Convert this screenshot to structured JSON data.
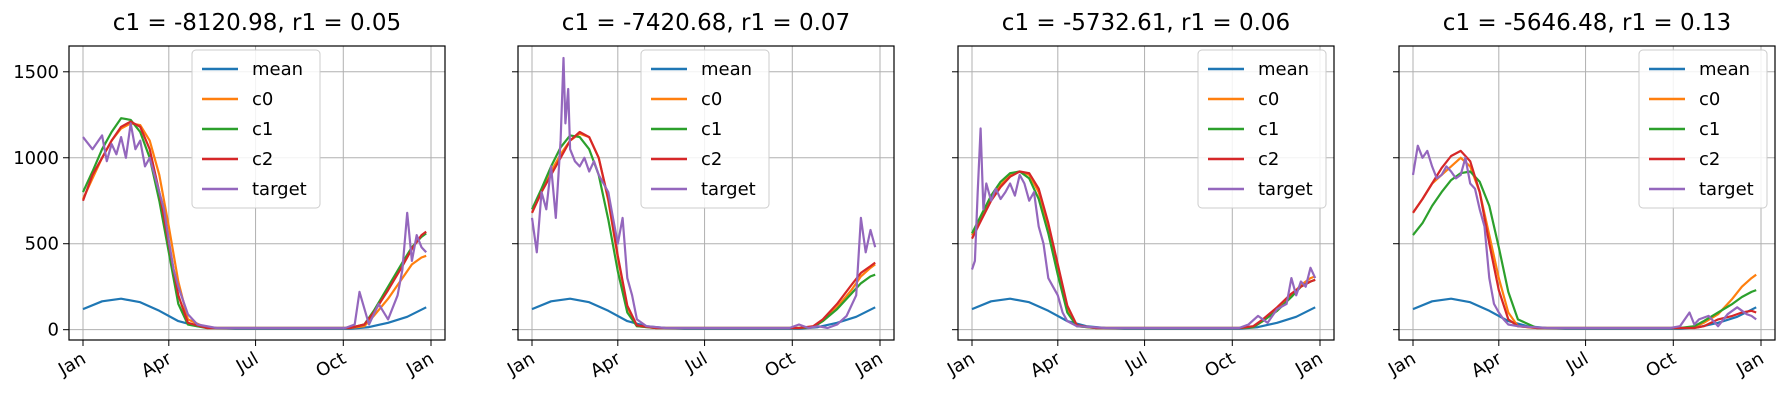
{
  "series_colors": {
    "mean": "#1f77b4",
    "c0": "#ff7f0e",
    "c1": "#2ca02c",
    "c2": "#d62728",
    "target": "#9467bd"
  },
  "chart_data": [
    {
      "type": "line",
      "title": "c1 = -8120.98, r1 = 0.05",
      "x_ticks": [
        "Jan",
        "Apr",
        "Jul",
        "Oct",
        "Jan"
      ],
      "y_ticks": [
        0,
        500,
        1000,
        1500
      ],
      "ylim": [
        -60,
        1650
      ],
      "legend": [
        "mean",
        "c0",
        "c1",
        "c2",
        "target"
      ],
      "legend_position": "upper-center",
      "grid": true,
      "series": [
        {
          "name": "mean",
          "x": [
            0,
            20,
            40,
            60,
            80,
            100,
            120,
            140,
            160,
            200,
            280,
            300,
            320,
            340,
            360
          ],
          "y": [
            120,
            165,
            180,
            160,
            110,
            50,
            20,
            10,
            5,
            5,
            5,
            15,
            40,
            75,
            130
          ]
        },
        {
          "name": "c0",
          "x": [
            0,
            10,
            20,
            30,
            40,
            50,
            60,
            70,
            80,
            90,
            100,
            110,
            130,
            280,
            295,
            305,
            320,
            335,
            345,
            355,
            360
          ],
          "y": [
            760,
            880,
            1000,
            1100,
            1170,
            1200,
            1190,
            1100,
            900,
            600,
            280,
            60,
            10,
            10,
            20,
            80,
            180,
            300,
            380,
            420,
            430
          ]
        },
        {
          "name": "c1",
          "x": [
            0,
            10,
            20,
            30,
            40,
            50,
            60,
            70,
            80,
            90,
            100,
            110,
            130,
            280,
            295,
            305,
            320,
            335,
            345,
            355,
            360
          ],
          "y": [
            800,
            920,
            1050,
            1150,
            1230,
            1220,
            1150,
            1000,
            750,
            450,
            150,
            30,
            10,
            10,
            30,
            110,
            250,
            390,
            480,
            540,
            560
          ]
        },
        {
          "name": "c2",
          "x": [
            0,
            10,
            20,
            30,
            40,
            50,
            60,
            70,
            80,
            90,
            100,
            110,
            130,
            280,
            295,
            305,
            320,
            335,
            345,
            355,
            360
          ],
          "y": [
            750,
            900,
            1000,
            1100,
            1180,
            1210,
            1180,
            1050,
            800,
            500,
            200,
            40,
            10,
            10,
            30,
            100,
            230,
            370,
            470,
            550,
            570
          ]
        },
        {
          "name": "target",
          "x": [
            0,
            10,
            20,
            25,
            30,
            35,
            40,
            45,
            50,
            55,
            60,
            65,
            70,
            75,
            80,
            85,
            90,
            95,
            100,
            110,
            120,
            140,
            200,
            275,
            285,
            290,
            300,
            310,
            320,
            330,
            335,
            340,
            345,
            350,
            355,
            360
          ],
          "y": [
            1120,
            1050,
            1130,
            980,
            1080,
            1020,
            1120,
            1000,
            1200,
            1050,
            1100,
            950,
            1000,
            900,
            800,
            700,
            520,
            350,
            250,
            90,
            30,
            10,
            10,
            10,
            30,
            220,
            30,
            150,
            60,
            200,
            350,
            680,
            400,
            550,
            480,
            450
          ]
        }
      ]
    },
    {
      "type": "line",
      "title": "c1 = -7420.68, r1 = 0.07",
      "x_ticks": [
        "Jan",
        "Apr",
        "Jul",
        "Oct",
        "Jan"
      ],
      "y_ticks": [
        0,
        500,
        1000,
        1500
      ],
      "ylim": [
        -60,
        1650
      ],
      "legend": [
        "mean",
        "c0",
        "c1",
        "c2",
        "target"
      ],
      "legend_position": "upper-center",
      "grid": true,
      "series": [
        {
          "name": "mean",
          "x": [
            0,
            20,
            40,
            60,
            80,
            100,
            120,
            140,
            160,
            200,
            280,
            300,
            320,
            340,
            360
          ],
          "y": [
            120,
            165,
            180,
            160,
            110,
            50,
            20,
            10,
            5,
            5,
            5,
            15,
            40,
            75,
            130
          ]
        },
        {
          "name": "c0",
          "x": [
            0,
            10,
            20,
            30,
            40,
            50,
            60,
            70,
            80,
            90,
            100,
            110,
            130,
            280,
            295,
            305,
            320,
            335,
            345,
            355,
            360
          ],
          "y": [
            680,
            800,
            920,
            1020,
            1100,
            1140,
            1120,
            1000,
            750,
            420,
            130,
            20,
            10,
            10,
            15,
            50,
            130,
            230,
            310,
            360,
            380
          ]
        },
        {
          "name": "c1",
          "x": [
            0,
            10,
            20,
            30,
            40,
            50,
            60,
            70,
            80,
            90,
            100,
            110,
            130,
            280,
            295,
            305,
            320,
            335,
            345,
            355,
            360
          ],
          "y": [
            700,
            820,
            950,
            1060,
            1130,
            1120,
            1050,
            900,
            640,
            340,
            100,
            20,
            10,
            10,
            15,
            50,
            120,
            210,
            270,
            310,
            320
          ]
        },
        {
          "name": "c2",
          "x": [
            0,
            10,
            20,
            30,
            40,
            50,
            60,
            70,
            80,
            90,
            100,
            110,
            130,
            280,
            295,
            305,
            320,
            335,
            345,
            355,
            360
          ],
          "y": [
            680,
            800,
            900,
            1000,
            1100,
            1150,
            1120,
            1000,
            760,
            430,
            140,
            25,
            10,
            10,
            20,
            60,
            150,
            260,
            330,
            370,
            390
          ]
        },
        {
          "name": "target",
          "x": [
            0,
            5,
            10,
            15,
            20,
            25,
            30,
            33,
            35,
            38,
            40,
            45,
            50,
            55,
            60,
            65,
            70,
            75,
            80,
            85,
            90,
            95,
            100,
            105,
            110,
            120,
            140,
            200,
            270,
            280,
            290,
            300,
            310,
            320,
            330,
            340,
            345,
            350,
            355,
            360
          ],
          "y": [
            650,
            450,
            800,
            700,
            950,
            650,
            1100,
            1580,
            1200,
            1400,
            1050,
            980,
            950,
            1000,
            920,
            980,
            900,
            850,
            800,
            650,
            500,
            650,
            300,
            200,
            60,
            20,
            10,
            10,
            10,
            30,
            10,
            20,
            10,
            30,
            80,
            200,
            650,
            450,
            580,
            480
          ]
        }
      ]
    },
    {
      "type": "line",
      "title": "c1 = -5732.61, r1 = 0.06",
      "x_ticks": [
        "Jan",
        "Apr",
        "Jul",
        "Oct",
        "Jan"
      ],
      "y_ticks": [
        0,
        500,
        1000,
        1500
      ],
      "ylim": [
        -60,
        1650
      ],
      "legend": [
        "mean",
        "c0",
        "c1",
        "c2",
        "target"
      ],
      "legend_position": "upper-right",
      "grid": true,
      "series": [
        {
          "name": "mean",
          "x": [
            0,
            20,
            40,
            60,
            80,
            100,
            120,
            140,
            160,
            200,
            280,
            300,
            320,
            340,
            360
          ],
          "y": [
            120,
            165,
            180,
            160,
            110,
            50,
            20,
            10,
            5,
            5,
            5,
            15,
            40,
            75,
            130
          ]
        },
        {
          "name": "c0",
          "x": [
            0,
            10,
            20,
            30,
            40,
            50,
            60,
            70,
            80,
            90,
            100,
            110,
            130,
            280,
            295,
            305,
            320,
            335,
            345,
            355,
            360
          ],
          "y": [
            550,
            650,
            760,
            840,
            900,
            920,
            900,
            800,
            600,
            350,
            120,
            20,
            10,
            10,
            15,
            50,
            120,
            200,
            260,
            300,
            310
          ]
        },
        {
          "name": "c1",
          "x": [
            0,
            10,
            20,
            30,
            40,
            50,
            60,
            70,
            80,
            90,
            100,
            110,
            130,
            280,
            295,
            305,
            320,
            335,
            345,
            355,
            360
          ],
          "y": [
            560,
            670,
            780,
            860,
            910,
            920,
            880,
            760,
            560,
            320,
            100,
            20,
            10,
            10,
            15,
            50,
            110,
            190,
            250,
            280,
            290
          ]
        },
        {
          "name": "c2",
          "x": [
            0,
            10,
            20,
            30,
            40,
            50,
            60,
            70,
            80,
            90,
            100,
            110,
            130,
            280,
            295,
            305,
            320,
            335,
            345,
            355,
            360
          ],
          "y": [
            530,
            640,
            750,
            830,
            890,
            920,
            910,
            820,
            620,
            380,
            140,
            25,
            10,
            10,
            20,
            60,
            130,
            210,
            250,
            280,
            290
          ]
        },
        {
          "name": "target",
          "x": [
            0,
            3,
            6,
            9,
            12,
            15,
            20,
            25,
            30,
            35,
            40,
            45,
            50,
            55,
            60,
            65,
            70,
            75,
            80,
            85,
            90,
            95,
            100,
            110,
            140,
            200,
            280,
            290,
            300,
            310,
            320,
            330,
            335,
            340,
            345,
            350,
            355,
            360
          ],
          "y": [
            350,
            400,
            800,
            1170,
            700,
            850,
            750,
            820,
            760,
            800,
            850,
            780,
            900,
            850,
            750,
            800,
            600,
            500,
            300,
            250,
            200,
            100,
            50,
            20,
            10,
            10,
            10,
            30,
            80,
            40,
            120,
            150,
            300,
            200,
            280,
            250,
            360,
            300
          ]
        }
      ]
    },
    {
      "type": "line",
      "title": "c1 = -5646.48, r1 = 0.13",
      "x_ticks": [
        "Jan",
        "Apr",
        "Jul",
        "Oct",
        "Jan"
      ],
      "y_ticks": [
        0,
        500,
        1000,
        1500
      ],
      "ylim": [
        -60,
        1650
      ],
      "legend": [
        "mean",
        "c0",
        "c1",
        "c2",
        "target"
      ],
      "legend_position": "upper-right",
      "grid": true,
      "series": [
        {
          "name": "mean",
          "x": [
            0,
            20,
            40,
            60,
            80,
            100,
            120,
            140,
            160,
            200,
            280,
            300,
            320,
            340,
            360
          ],
          "y": [
            120,
            165,
            180,
            160,
            110,
            50,
            20,
            10,
            5,
            5,
            5,
            15,
            40,
            75,
            130
          ]
        },
        {
          "name": "c0",
          "x": [
            0,
            10,
            20,
            30,
            40,
            50,
            60,
            70,
            80,
            90,
            100,
            110,
            130,
            280,
            295,
            305,
            320,
            335,
            345,
            355,
            360
          ],
          "y": [
            680,
            760,
            850,
            900,
            950,
            1000,
            950,
            800,
            550,
            300,
            100,
            20,
            10,
            10,
            15,
            40,
            90,
            180,
            250,
            300,
            320
          ]
        },
        {
          "name": "c1",
          "x": [
            0,
            10,
            20,
            30,
            40,
            50,
            60,
            70,
            80,
            90,
            100,
            110,
            130,
            280,
            295,
            305,
            320,
            335,
            345,
            355,
            360
          ],
          "y": [
            550,
            620,
            720,
            800,
            870,
            910,
            920,
            860,
            720,
            480,
            220,
            60,
            10,
            10,
            20,
            50,
            100,
            150,
            190,
            220,
            230
          ]
        },
        {
          "name": "c2",
          "x": [
            0,
            10,
            20,
            30,
            40,
            50,
            60,
            70,
            80,
            90,
            100,
            110,
            130,
            280,
            295,
            305,
            320,
            335,
            345,
            355,
            360
          ],
          "y": [
            680,
            760,
            850,
            940,
            1010,
            1040,
            980,
            800,
            500,
            230,
            60,
            20,
            10,
            10,
            10,
            20,
            60,
            80,
            100,
            110,
            100
          ]
        },
        {
          "name": "target",
          "x": [
            0,
            5,
            10,
            15,
            20,
            25,
            30,
            35,
            40,
            45,
            50,
            55,
            60,
            65,
            70,
            75,
            80,
            85,
            90,
            95,
            100,
            110,
            140,
            200,
            270,
            280,
            290,
            295,
            300,
            310,
            320,
            330,
            340,
            350,
            355,
            360
          ],
          "y": [
            900,
            1070,
            1000,
            1040,
            950,
            880,
            900,
            950,
            920,
            880,
            900,
            1000,
            850,
            820,
            700,
            600,
            300,
            150,
            100,
            60,
            30,
            20,
            10,
            10,
            10,
            20,
            100,
            30,
            60,
            80,
            20,
            90,
            130,
            90,
            80,
            60
          ]
        }
      ]
    }
  ]
}
